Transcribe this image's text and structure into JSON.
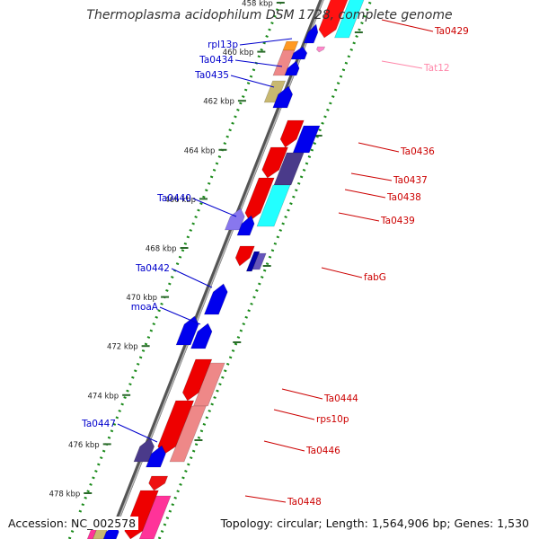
{
  "title": "Thermoplasma acidophilum DSM 1728, complete genome",
  "footer": {
    "accession": "Accession: NC_002578",
    "topology": "Topology: circular; Length: 1,564,906 bp; Genes: 1,530"
  },
  "colors": {
    "backbone": "#777777",
    "ruler_dots": "#1a8a1a",
    "label_blue": "#0000cc",
    "label_red": "#cc0000",
    "label_pink": "#ff88aa"
  },
  "ruler_labels": [
    "458 kbp",
    "460 kbp",
    "462 kbp",
    "464 kbp",
    "466 kbp",
    "468 kbp",
    "470 kbp",
    "472 kbp",
    "474 kbp",
    "476 kbp",
    "478 kbp"
  ],
  "gene_labels": {
    "left": [
      "rpl13p",
      "Ta0434",
      "Ta0435",
      "Ta0440",
      "Ta0442",
      "moaA",
      "Ta0447"
    ],
    "right": [
      "Ta0429",
      "Tat12",
      "Ta0436",
      "Ta0437",
      "Ta0438",
      "Ta0439",
      "fabG",
      "Ta0444",
      "rps10p",
      "Ta0446",
      "Ta0448"
    ]
  }
}
